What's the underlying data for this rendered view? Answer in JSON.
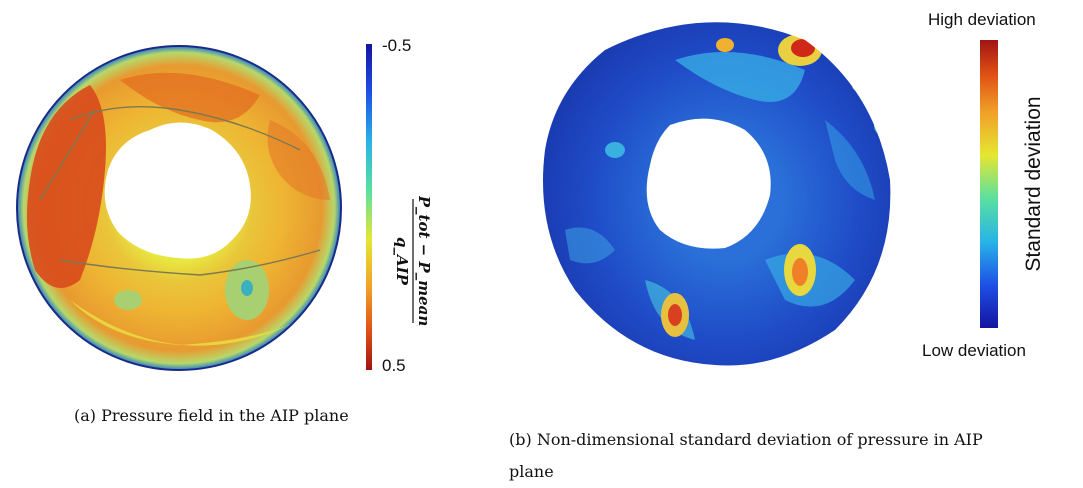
{
  "figure_a": {
    "colorbar": {
      "top_label": "-0.5",
      "bottom_label": "0.5",
      "title_numerator": "(P_tot − P_mean)",
      "title_denominator": "q_AIP",
      "colors": [
        "#1414a0",
        "#1e50e6",
        "#28b4e6",
        "#5ae0a0",
        "#e6e632",
        "#f0a028",
        "#e05014",
        "#a01414"
      ]
    },
    "caption": "(a) Pressure field in the AIP plane"
  },
  "figure_b": {
    "colorbar": {
      "top_label": "High deviation",
      "bottom_label": "Low deviation",
      "title": "Standard deviation",
      "colors": [
        "#1414a0",
        "#1e50e6",
        "#28b4e6",
        "#5ae0a0",
        "#e6e632",
        "#f0a028",
        "#e05014",
        "#a01414"
      ]
    },
    "caption_line1": "(b) Non-dimensional standard deviation of pressure in AIP",
    "caption_line2": "plane"
  }
}
